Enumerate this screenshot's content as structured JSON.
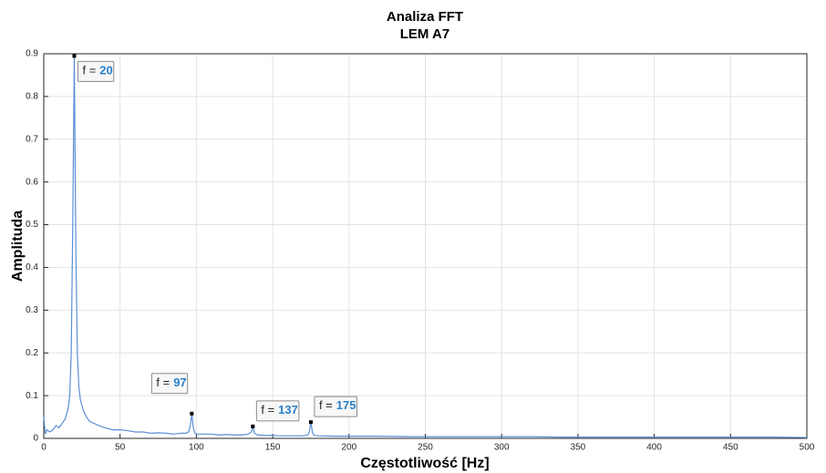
{
  "chart_data": {
    "type": "line",
    "title": [
      "Analiza FFT",
      "LEM A7"
    ],
    "x_label": "Częstotliwość [Hz]",
    "y_label": "Amplituda",
    "grid": true,
    "x": [
      0,
      1,
      2,
      4,
      6,
      8,
      10,
      12,
      14,
      16,
      17,
      18,
      19,
      20,
      21,
      22,
      23,
      24,
      26,
      28,
      30,
      33,
      36,
      40,
      45,
      50,
      55,
      60,
      65,
      70,
      75,
      80,
      85,
      90,
      93,
      95,
      96,
      97,
      98,
      99,
      100,
      105,
      110,
      115,
      120,
      125,
      130,
      134,
      136,
      137,
      138,
      140,
      145,
      150,
      155,
      160,
      165,
      170,
      173,
      174,
      175,
      176,
      177,
      180,
      190,
      200,
      220,
      240,
      260,
      280,
      300,
      320,
      340,
      360,
      380,
      400,
      420,
      440,
      460,
      480,
      500
    ],
    "series": [
      {
        "color": "#5b8fd6",
        "values": [
          0.05,
          0.01,
          0.02,
          0.015,
          0.02,
          0.03,
          0.025,
          0.035,
          0.045,
          0.07,
          0.1,
          0.2,
          0.5,
          0.895,
          0.45,
          0.2,
          0.12,
          0.09,
          0.065,
          0.05,
          0.04,
          0.035,
          0.03,
          0.025,
          0.02,
          0.02,
          0.018,
          0.015,
          0.015,
          0.012,
          0.013,
          0.012,
          0.01,
          0.012,
          0.012,
          0.015,
          0.03,
          0.058,
          0.025,
          0.012,
          0.01,
          0.01,
          0.01,
          0.008,
          0.009,
          0.008,
          0.008,
          0.01,
          0.015,
          0.028,
          0.012,
          0.008,
          0.007,
          0.007,
          0.006,
          0.006,
          0.006,
          0.006,
          0.008,
          0.015,
          0.038,
          0.015,
          0.007,
          0.006,
          0.005,
          0.005,
          0.005,
          0.004,
          0.004,
          0.004,
          0.004,
          0.004,
          0.003,
          0.003,
          0.003,
          0.003,
          0.003,
          0.003,
          0.003,
          0.003,
          0.002
        ]
      }
    ],
    "annotations": [
      {
        "text": "f =",
        "x": 20,
        "y": 0.895
      },
      {
        "text": "f =",
        "x": 97,
        "y": 0.058
      },
      {
        "text": "f =",
        "x": 137,
        "y": 0.028
      },
      {
        "text": "f =",
        "x": 175,
        "y": 0.038
      }
    ],
    "annotation_color": "#2a7fc9",
    "xlim": [
      0,
      500
    ],
    "xticks": [
      0,
      50,
      100,
      150,
      200,
      250,
      300,
      350,
      400,
      450,
      500
    ],
    "ylim": [
      0,
      0.9
    ],
    "yticks": [
      0,
      0.1,
      0.2,
      0.3,
      0.4,
      0.5,
      0.6,
      0.7,
      0.8,
      0.9
    ]
  }
}
